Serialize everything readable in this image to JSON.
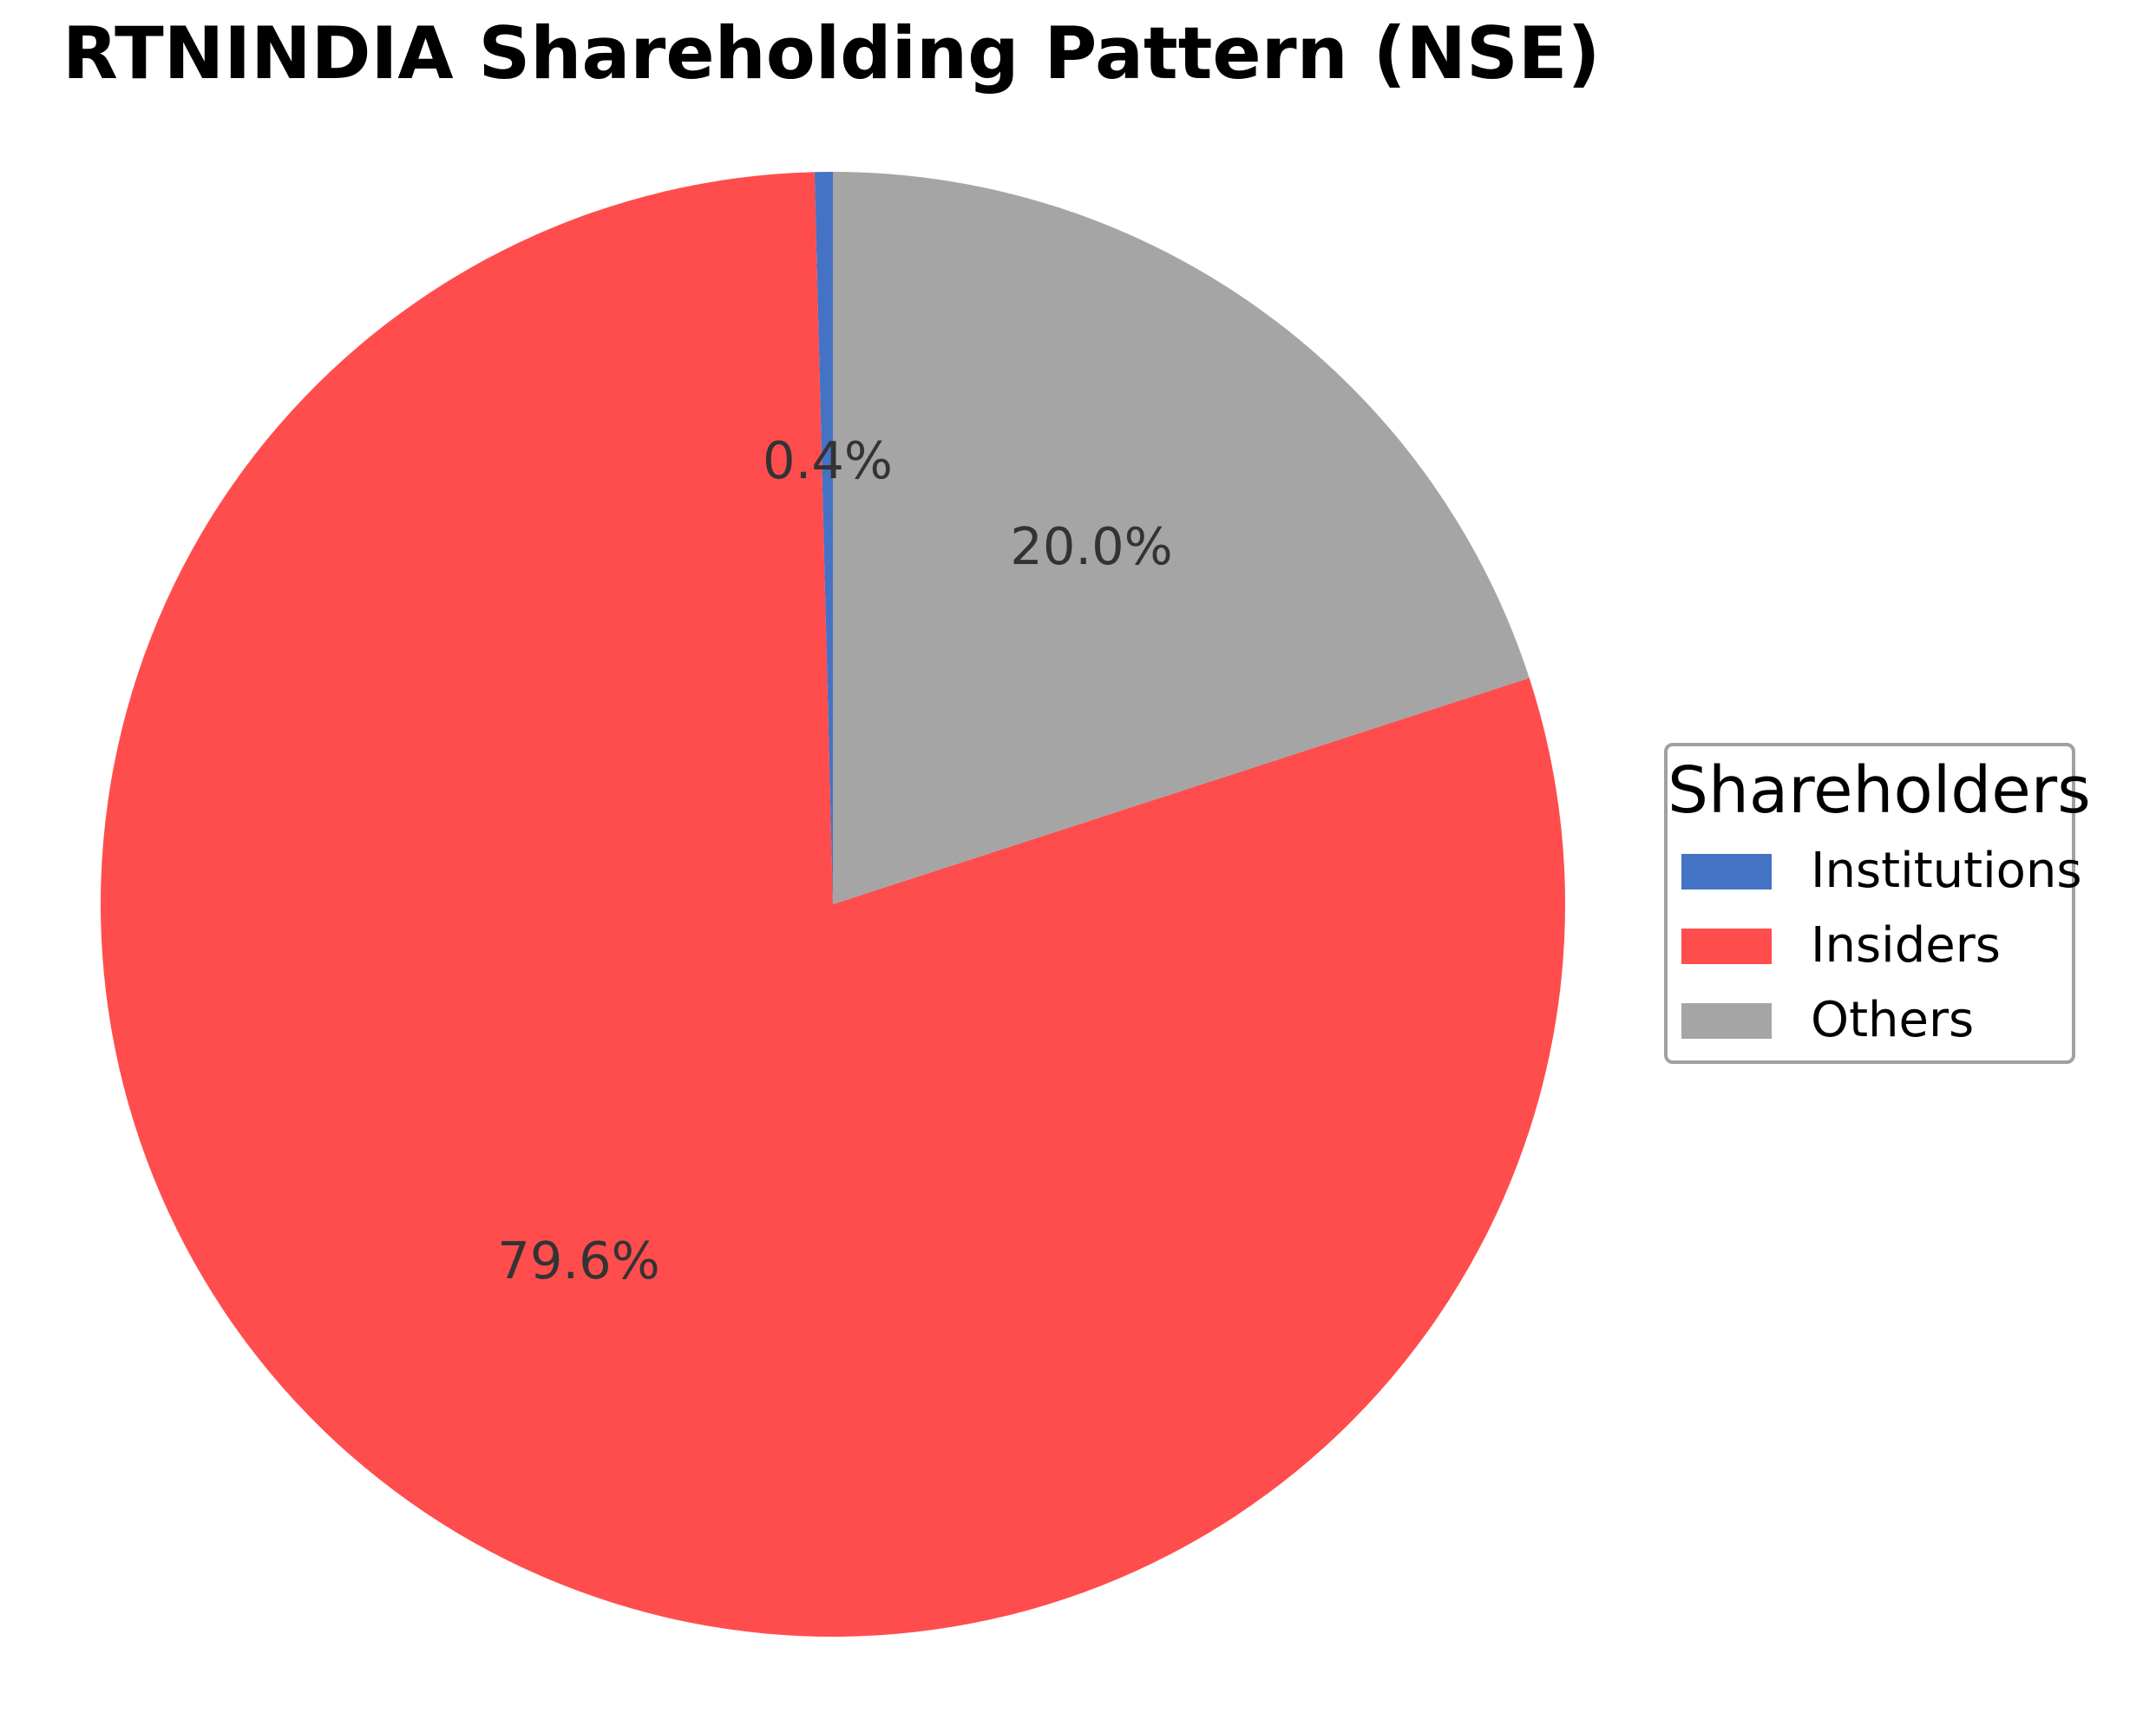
{
  "chart_data": {
    "type": "pie",
    "title": "RTNINDIA Shareholding Pattern (NSE)",
    "categories": [
      "Institutions",
      "Insiders",
      "Others"
    ],
    "values": [
      0.4,
      79.6,
      20.0
    ],
    "labels": [
      "0.4%",
      "79.6%",
      "20.0%"
    ],
    "colors": [
      "#4472c4",
      "#ff4d4d",
      "#a5a5a5"
    ],
    "start_angle_deg": 90,
    "direction": "counterclockwise",
    "legend": {
      "title": "Shareholders",
      "position": "center right",
      "entries": [
        "Institutions",
        "Insiders",
        "Others"
      ]
    }
  },
  "title": "RTNINDIA Shareholding Pattern (NSE)",
  "slices": [
    {
      "name": "Institutions",
      "value": 0.4,
      "label": "0.4%",
      "color": "#4472c4"
    },
    {
      "name": "Insiders",
      "value": 79.6,
      "label": "79.6%",
      "color": "#ff4d4d"
    },
    {
      "name": "Others",
      "value": 20.0,
      "label": "20.0%",
      "color": "#a5a5a5"
    }
  ],
  "legend": {
    "title": "Shareholders",
    "items": [
      {
        "label": "Institutions",
        "color": "#4472c4"
      },
      {
        "label": "Insiders",
        "color": "#ff4d4d"
      },
      {
        "label": "Others",
        "color": "#a5a5a5"
      }
    ]
  }
}
